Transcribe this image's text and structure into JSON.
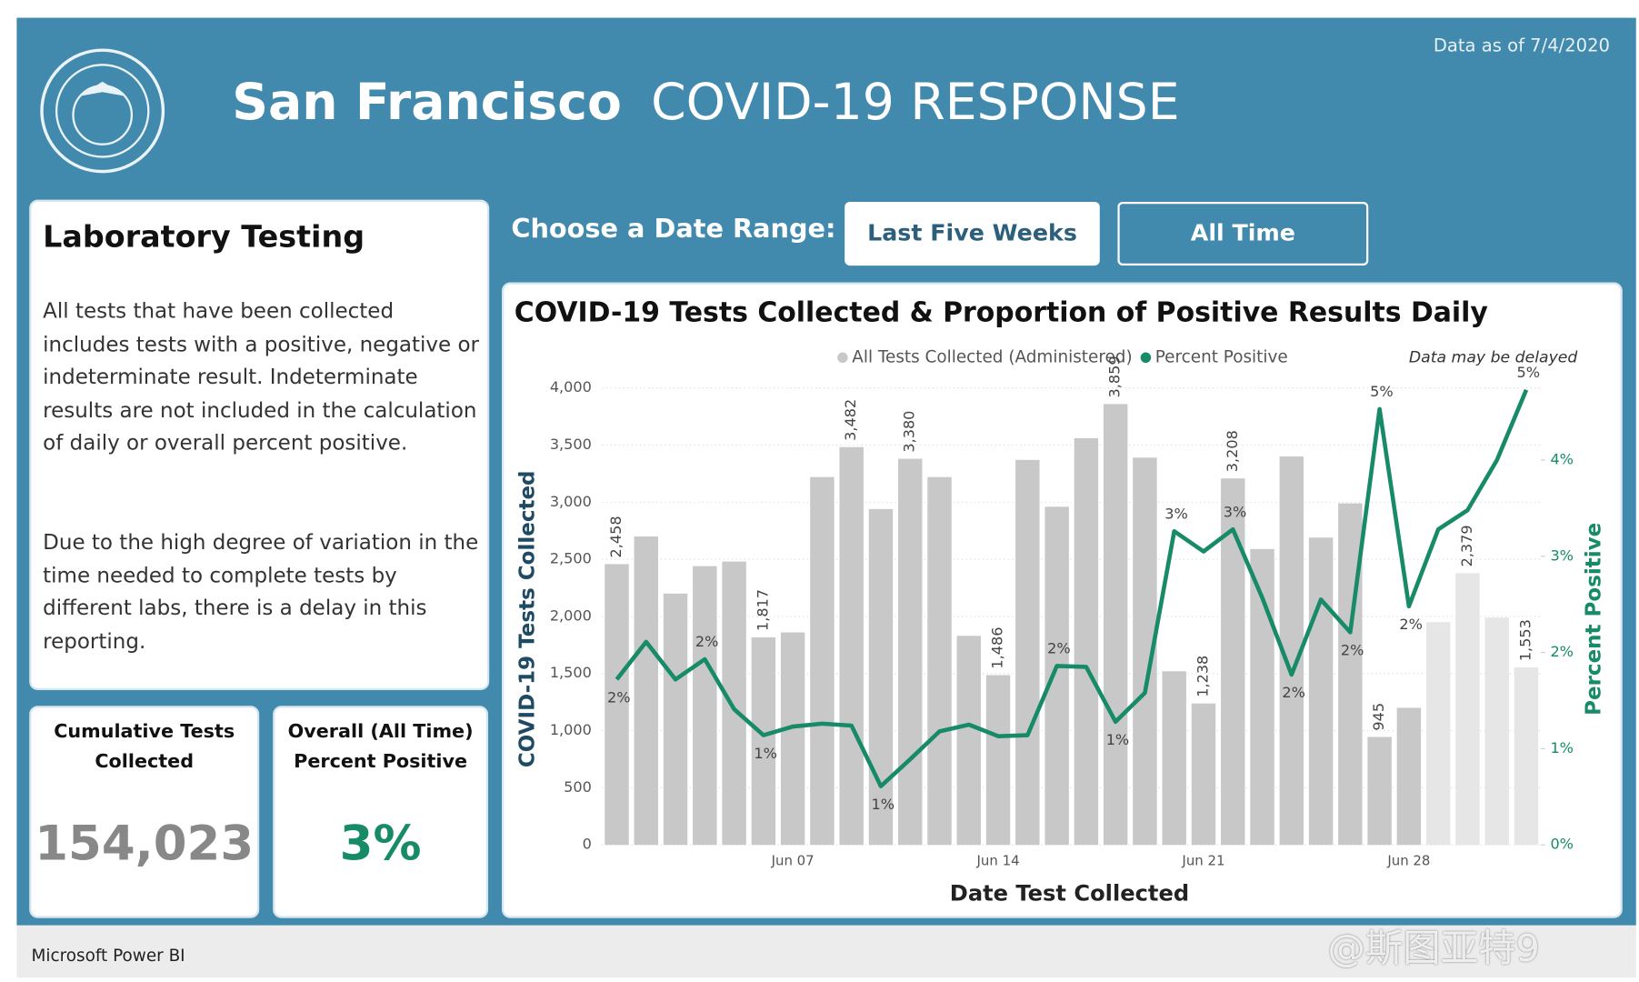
{
  "header": {
    "date_note": "Data as of 7/4/2020",
    "title_bold": "San Francisco",
    "title_light": "COVID-19 RESPONSE"
  },
  "info_panel": {
    "title": "Laboratory Testing",
    "paragraphs": [
      "All tests that have been collected includes tests with a positive, negative or indeterminate result. Indeterminate results are not included in the calculation of daily or overall percent positive.",
      "Due to the high degree of variation in the time needed to complete tests by different labs, there is a delay in this reporting."
    ]
  },
  "kpis": [
    {
      "label_lines": [
        "Cumulative Tests",
        "Collected"
      ],
      "value": "154,023"
    },
    {
      "label_lines": [
        "Overall (All Time)",
        "Percent Positive"
      ],
      "value": "3%"
    }
  ],
  "date_range": {
    "label": "Choose a Date Range:",
    "buttons": [
      "Last Five Weeks",
      "All Time"
    ]
  },
  "footer": {
    "brand": "Microsoft Power BI",
    "watermark": "@斯图亚特9"
  },
  "chart_data": {
    "type": "bar",
    "title": "COVID-19 Tests Collected & Proportion of Positive Results Daily",
    "note": "Data may be delayed",
    "x_label": "Date Test Collected",
    "y_label": "COVID-19 Tests Collected",
    "y2_label": "Percent Positive",
    "categories": [
      null,
      null,
      null,
      null,
      null,
      null,
      "Jun 07",
      null,
      null,
      null,
      null,
      null,
      null,
      "Jun 14",
      null,
      null,
      null,
      null,
      null,
      null,
      "Jun 21",
      null,
      null,
      null,
      null,
      null,
      null,
      "Jun 28",
      null,
      null,
      null,
      null
    ],
    "ylim": [
      0,
      4000
    ],
    "yticks": [
      0,
      500,
      {
        "value": 1000,
        "label": "1,000"
      },
      {
        "value": 1500,
        "label": "1,500"
      },
      {
        "value": 2000,
        "label": "2,000"
      },
      {
        "value": 2500,
        "label": "2,500"
      },
      {
        "value": 3000,
        "label": "3,000"
      },
      {
        "value": 3500,
        "label": "3,500"
      },
      {
        "value": 4000,
        "label": "4,000"
      }
    ],
    "y2lim": [
      0,
      4.75
    ],
    "y2ticks": [
      {
        "value": 0,
        "label": "0%"
      },
      {
        "value": 1,
        "label": "1%"
      },
      {
        "value": 2,
        "label": "2%"
      },
      {
        "value": 3,
        "label": "3%"
      },
      {
        "value": 4,
        "label": "4%"
      }
    ],
    "grid": true,
    "series": [
      {
        "name": "All Tests Collected (Administered)",
        "type": "bar",
        "color": "#c8c8c8",
        "colors": [
          "#c8c8c8",
          "#c8c8c8",
          "#c8c8c8",
          "#c8c8c8",
          "#c8c8c8",
          "#c8c8c8",
          "#c8c8c8",
          "#c8c8c8",
          "#c8c8c8",
          "#c8c8c8",
          "#c8c8c8",
          "#c8c8c8",
          "#c8c8c8",
          "#c8c8c8",
          "#c8c8c8",
          "#c8c8c8",
          "#c8c8c8",
          "#c8c8c8",
          "#c8c8c8",
          "#c8c8c8",
          "#c8c8c8",
          "#c8c8c8",
          "#c8c8c8",
          "#c8c8c8",
          "#c8c8c8",
          "#c8c8c8",
          "#c8c8c8",
          "#c8c8c8",
          "#e6e6e6",
          "#e6e6e6",
          "#e6e6e6",
          "#e6e6e6"
        ],
        "values": [
          2458,
          2700,
          2200,
          2440,
          2480,
          1817,
          1860,
          3220,
          3482,
          2940,
          3380,
          3220,
          1830,
          1486,
          3370,
          2960,
          3560,
          3859,
          3390,
          1520,
          1238,
          3208,
          2590,
          3400,
          2690,
          2990,
          945,
          1200,
          1950,
          2379,
          1990,
          1553
        ],
        "value_labels": [
          "2,458",
          null,
          null,
          null,
          null,
          "1,817",
          null,
          null,
          "3,482",
          null,
          "3,380",
          null,
          null,
          "1,486",
          null,
          null,
          null,
          "3,859",
          null,
          null,
          "1,238",
          "3,208",
          null,
          null,
          null,
          null,
          "945",
          null,
          null,
          "2,379",
          null,
          "1,553"
        ]
      },
      {
        "name": "Percent Positive",
        "type": "line",
        "axis": "y2",
        "color": "#178a68",
        "values": [
          1.72,
          2.11,
          1.72,
          1.93,
          1.41,
          1.14,
          1.23,
          1.26,
          1.24,
          0.61,
          0.89,
          1.18,
          1.25,
          1.13,
          1.14,
          1.86,
          1.85,
          1.28,
          1.58,
          3.26,
          3.05,
          3.28,
          2.57,
          1.77,
          2.55,
          2.21,
          4.53,
          2.48,
          3.28,
          3.48,
          4.0,
          4.73
        ],
        "value_labels": [
          "2%",
          null,
          null,
          "2%",
          null,
          "1%",
          null,
          null,
          null,
          "1%",
          null,
          null,
          null,
          null,
          null,
          "2%",
          null,
          "1%",
          null,
          "3%",
          null,
          "3%",
          null,
          "2%",
          null,
          "2%",
          "5%",
          "2%",
          null,
          null,
          null,
          "5%"
        ]
      }
    ]
  }
}
